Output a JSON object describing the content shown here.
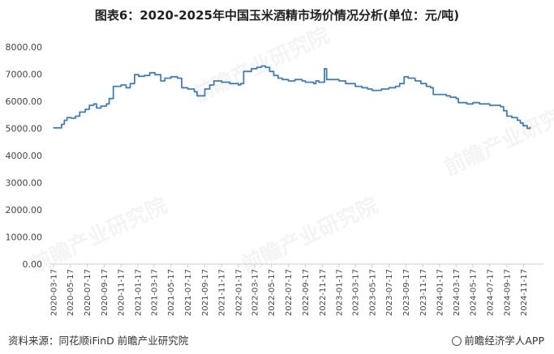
{
  "title": "图表6：2020-2025年中国玉米酒精市场价情况分析(单位：元/吨)",
  "source": "资料来源：同花顺iFinD 前瞻产业研究院",
  "brand": "前瞻经济学人APP",
  "watermark": "前瞻产业研究院",
  "colors": {
    "line": "#3d7fc1",
    "axis": "#cccccc"
  },
  "chart_data": {
    "type": "line",
    "title": "图表6：2020-2025年中国玉米酒精市场价情况分析(单位：元/吨)",
    "ylim": [
      0,
      8000
    ],
    "yticks": [
      "0.00",
      "1000.00",
      "2000.00",
      "3000.00",
      "4000.00",
      "5000.00",
      "6000.00",
      "7000.00",
      "8000.00"
    ],
    "xticks": [
      "2020-03-17",
      "2020-05-17",
      "2020-07-17",
      "2020-09-17",
      "2020-11-17",
      "2021-01-17",
      "2021-03-17",
      "2021-05-17",
      "2021-07-17",
      "2021-09-17",
      "2021-11-17",
      "2022-01-17",
      "2022-03-17",
      "2022-05-17",
      "2022-07-17",
      "2022-09-17",
      "2022-11-17",
      "2023-01-17",
      "2023-03-17",
      "2023-05-17",
      "2023-07-17",
      "2023-09-17",
      "2023-11-17",
      "2024-01-17",
      "2024-03-17",
      "2024-05-17",
      "2024-07-17",
      "2024-09-17",
      "2024-11-17"
    ],
    "grid": false,
    "series": [
      {
        "values": [
          [
            "2020-03-17",
            5020
          ],
          [
            "2020-04-10",
            5020
          ],
          [
            "2020-04-15",
            5150
          ],
          [
            "2020-04-25",
            5300
          ],
          [
            "2020-05-05",
            5400
          ],
          [
            "2020-05-20",
            5380
          ],
          [
            "2020-06-05",
            5450
          ],
          [
            "2020-06-20",
            5600
          ],
          [
            "2020-07-10",
            5700
          ],
          [
            "2020-07-25",
            5850
          ],
          [
            "2020-08-10",
            5900
          ],
          [
            "2020-08-20",
            5750
          ],
          [
            "2020-09-05",
            5820
          ],
          [
            "2020-09-25",
            5900
          ],
          [
            "2020-10-05",
            6100
          ],
          [
            "2020-10-20",
            6550
          ],
          [
            "2020-11-17",
            6600
          ],
          [
            "2020-12-05",
            6500
          ],
          [
            "2020-12-20",
            6650
          ],
          [
            "2021-01-05",
            6980
          ],
          [
            "2021-01-20",
            6920
          ],
          [
            "2021-02-10",
            6950
          ],
          [
            "2021-03-01",
            7050
          ],
          [
            "2021-03-20",
            6980
          ],
          [
            "2021-04-10",
            6750
          ],
          [
            "2021-04-25",
            6850
          ],
          [
            "2021-05-17",
            6900
          ],
          [
            "2021-06-10",
            6850
          ],
          [
            "2021-06-25",
            6500
          ],
          [
            "2021-07-17",
            6450
          ],
          [
            "2021-08-10",
            6350
          ],
          [
            "2021-08-20",
            6200
          ],
          [
            "2021-09-05",
            6200
          ],
          [
            "2021-09-17",
            6450
          ],
          [
            "2021-10-05",
            6600
          ],
          [
            "2021-10-20",
            6750
          ],
          [
            "2021-11-17",
            6700
          ],
          [
            "2021-12-17",
            6650
          ],
          [
            "2022-01-17",
            6600
          ],
          [
            "2022-01-25",
            6650
          ],
          [
            "2022-02-05",
            7100
          ],
          [
            "2022-03-05",
            7200
          ],
          [
            "2022-03-25",
            7250
          ],
          [
            "2022-04-10",
            7300
          ],
          [
            "2022-04-25",
            7250
          ],
          [
            "2022-05-10",
            7100
          ],
          [
            "2022-05-25",
            6950
          ],
          [
            "2022-06-10",
            6850
          ],
          [
            "2022-06-25",
            6800
          ],
          [
            "2022-07-17",
            6750
          ],
          [
            "2022-08-10",
            6800
          ],
          [
            "2022-09-05",
            6750
          ],
          [
            "2022-09-17",
            6700
          ],
          [
            "2022-10-17",
            6650
          ],
          [
            "2022-10-25",
            6750
          ],
          [
            "2022-11-05",
            6700
          ],
          [
            "2022-11-17",
            6700
          ],
          [
            "2022-11-25",
            7200
          ],
          [
            "2022-12-03",
            6800
          ],
          [
            "2022-12-17",
            6800
          ],
          [
            "2023-01-17",
            6750
          ],
          [
            "2023-02-10",
            6650
          ],
          [
            "2023-03-17",
            6550
          ],
          [
            "2023-04-10",
            6500
          ],
          [
            "2023-05-01",
            6450
          ],
          [
            "2023-05-17",
            6400
          ],
          [
            "2023-06-10",
            6400
          ],
          [
            "2023-06-20",
            6450
          ],
          [
            "2023-07-17",
            6500
          ],
          [
            "2023-08-10",
            6550
          ],
          [
            "2023-08-25",
            6650
          ],
          [
            "2023-09-10",
            6900
          ],
          [
            "2023-09-25",
            6850
          ],
          [
            "2023-10-20",
            6750
          ],
          [
            "2023-11-10",
            6650
          ],
          [
            "2023-11-30",
            6550
          ],
          [
            "2023-12-15",
            6500
          ],
          [
            "2023-12-25",
            6250
          ],
          [
            "2024-01-17",
            6250
          ],
          [
            "2024-02-10",
            6200
          ],
          [
            "2024-02-25",
            6150
          ],
          [
            "2024-03-17",
            6100
          ],
          [
            "2024-03-25",
            5950
          ],
          [
            "2024-04-10",
            5950
          ],
          [
            "2024-04-25",
            5900
          ],
          [
            "2024-05-17",
            5950
          ],
          [
            "2024-06-10",
            5900
          ],
          [
            "2024-06-25",
            5900
          ],
          [
            "2024-07-17",
            5850
          ],
          [
            "2024-08-10",
            5850
          ],
          [
            "2024-08-25",
            5800
          ],
          [
            "2024-09-05",
            5650
          ],
          [
            "2024-09-17",
            5450
          ],
          [
            "2024-10-05",
            5400
          ],
          [
            "2024-10-25",
            5300
          ],
          [
            "2024-11-05",
            5200
          ],
          [
            "2024-11-15",
            5100
          ],
          [
            "2024-11-30",
            5000
          ],
          [
            "2024-12-10",
            5050
          ]
        ]
      }
    ]
  }
}
